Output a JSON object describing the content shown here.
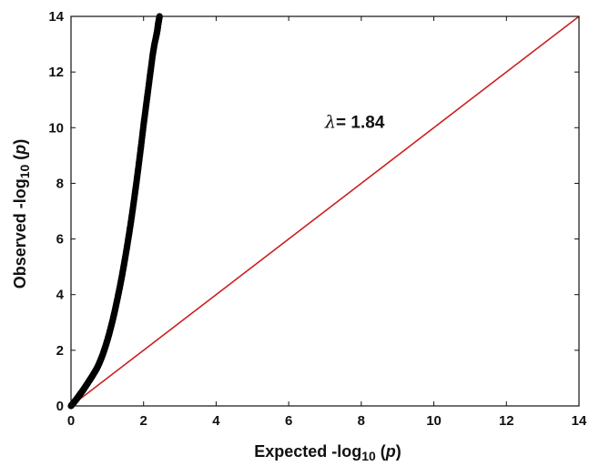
{
  "chart_data": {
    "type": "scatter",
    "xlabel": {
      "prefix": "Expected -log",
      "subscript": "10",
      "suffix": " (",
      "var": "p",
      "close": ")"
    },
    "ylabel": {
      "prefix": "Observed -log",
      "subscript": "10",
      "suffix": " (",
      "var": "p",
      "close": ")"
    },
    "xlim": [
      0,
      14
    ],
    "ylim": [
      0,
      14
    ],
    "xticks": [
      0,
      2,
      4,
      6,
      8,
      10,
      12,
      14
    ],
    "yticks": [
      0,
      2,
      4,
      6,
      8,
      10,
      12,
      14
    ],
    "grid": false,
    "annotation": {
      "symbol": "λ",
      "text": "= 1.84",
      "x": 7.0,
      "y": 10.0
    },
    "reference_line": {
      "x": [
        0,
        14
      ],
      "y": [
        0,
        14
      ],
      "color": "#cc1f1f"
    },
    "series": [
      {
        "color": "#000000",
        "x": [
          0.0,
          0.05,
          0.1,
          0.15,
          0.2,
          0.25,
          0.3,
          0.35,
          0.4,
          0.45,
          0.5,
          0.55,
          0.6,
          0.65,
          0.7,
          0.75,
          0.8,
          0.85,
          0.9,
          0.95,
          1.0,
          1.05,
          1.1,
          1.15,
          1.2,
          1.25,
          1.3,
          1.35,
          1.4,
          1.45,
          1.5,
          1.55,
          1.6,
          1.65,
          1.7,
          1.75,
          1.8,
          1.85,
          1.9,
          1.95,
          2.0,
          2.05,
          2.1,
          2.15,
          2.2,
          2.25,
          2.3,
          2.35,
          2.38,
          2.4,
          2.42,
          2.44
        ],
        "y": [
          0.0,
          0.08,
          0.16,
          0.24,
          0.33,
          0.42,
          0.51,
          0.6,
          0.7,
          0.8,
          0.9,
          1.0,
          1.1,
          1.21,
          1.32,
          1.45,
          1.6,
          1.76,
          1.94,
          2.14,
          2.35,
          2.58,
          2.83,
          3.09,
          3.37,
          3.67,
          3.98,
          4.3,
          4.64,
          5.0,
          5.38,
          5.77,
          6.18,
          6.6,
          7.05,
          7.52,
          8.0,
          8.5,
          9.02,
          9.55,
          10.1,
          10.6,
          11.1,
          11.6,
          12.1,
          12.6,
          13.0,
          13.3,
          13.5,
          13.7,
          13.85,
          14.0
        ]
      }
    ]
  }
}
